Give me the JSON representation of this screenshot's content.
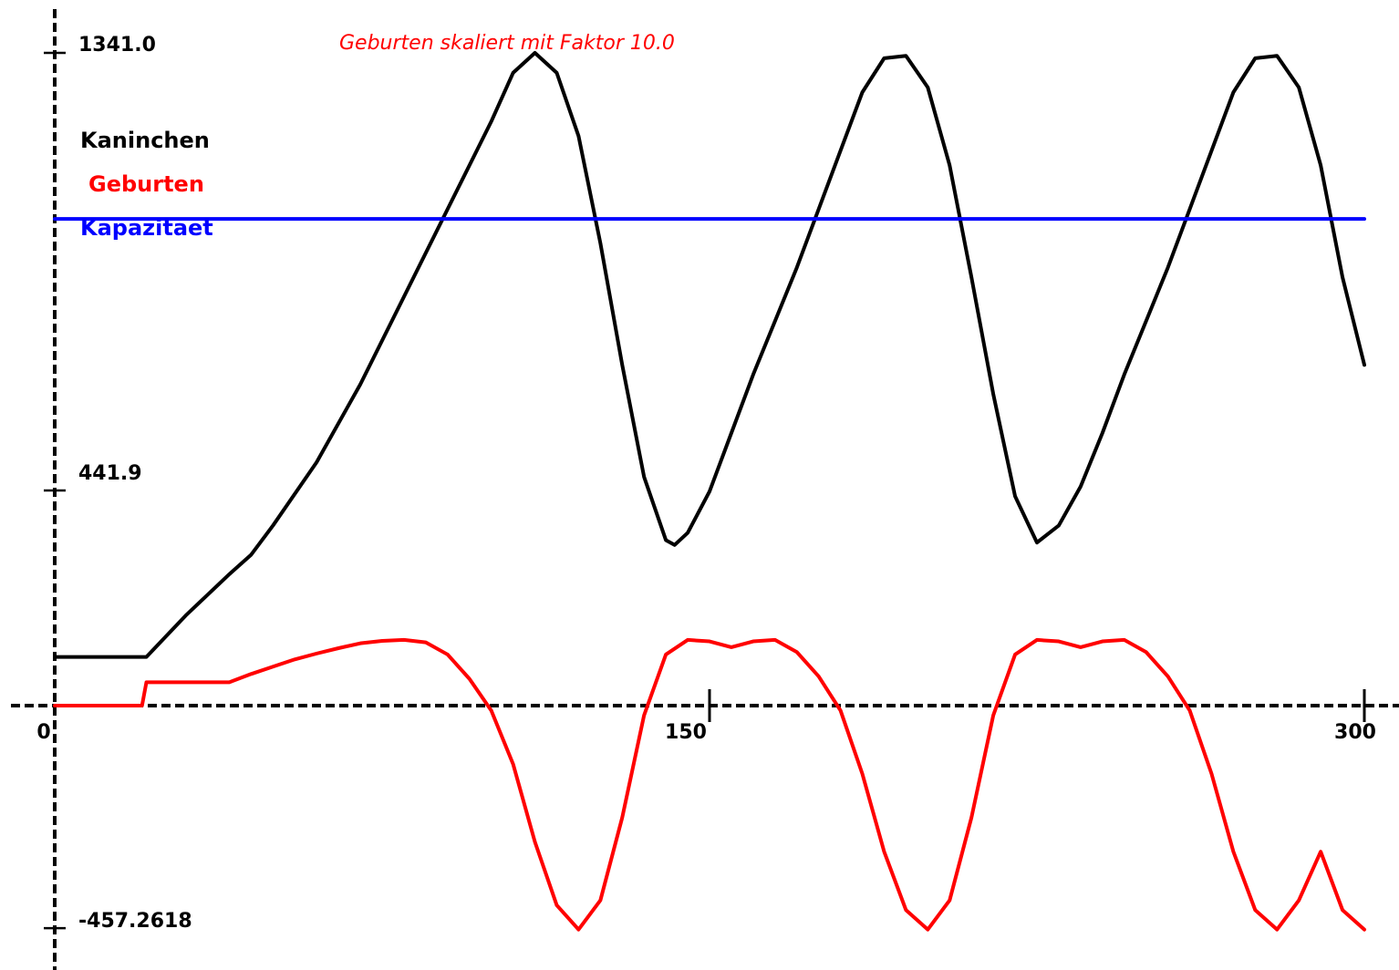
{
  "chart_data": {
    "type": "line",
    "annotation": "Geburten skaliert mit Faktor 10.0",
    "x_ticks": [
      "0",
      "150",
      "300"
    ],
    "y_ticks": [
      "1341.0",
      "441.9",
      "-457.2618"
    ],
    "xlim": [
      0,
      300
    ],
    "ylim": [
      -457.2618,
      1341.0
    ],
    "grid": false,
    "legend_position": "top-left",
    "series": [
      {
        "name": "Kaninchen",
        "color": "#000000",
        "x": [
          0,
          10,
          20,
          21,
          30,
          40,
          45,
          50,
          60,
          70,
          80,
          90,
          95,
          100,
          105,
          110,
          115,
          120,
          125,
          130,
          135,
          140,
          142,
          145,
          150,
          155,
          160,
          165,
          170,
          175,
          180,
          185,
          190,
          195,
          200,
          205,
          210,
          215,
          220,
          225,
          230,
          235,
          240,
          245,
          250,
          255,
          260,
          265,
          270,
          275,
          280,
          285,
          290,
          295,
          300
        ],
        "y": [
          100,
          100,
          100,
          100,
          185,
          270,
          310,
          370,
          500,
          660,
          840,
          1020,
          1110,
          1200,
          1300,
          1341,
          1300,
          1170,
          950,
          700,
          470,
          340,
          330,
          355,
          440,
          560,
          680,
          790,
          900,
          1020,
          1140,
          1260,
          1330,
          1335,
          1270,
          1110,
          880,
          640,
          430,
          335,
          370,
          450,
          560,
          680,
          790,
          900,
          1020,
          1140,
          1260,
          1330,
          1335,
          1270,
          1110,
          880,
          700
        ]
      },
      {
        "name": "Geburten",
        "color": "#ff0000",
        "x": [
          0,
          10,
          20,
          21,
          25,
          30,
          35,
          40,
          45,
          50,
          55,
          60,
          65,
          70,
          75,
          80,
          85,
          90,
          95,
          100,
          105,
          110,
          115,
          120,
          125,
          130,
          135,
          140,
          145,
          150,
          155,
          160,
          165,
          170,
          175,
          180,
          185,
          190,
          195,
          200,
          205,
          210,
          215,
          220,
          225,
          230,
          235,
          240,
          245,
          250,
          255,
          260,
          265,
          270,
          275,
          280,
          285,
          290,
          295,
          300
        ],
        "y": [
          0,
          0,
          0,
          48,
          48,
          48,
          48,
          48,
          65,
          80,
          95,
          107,
          118,
          128,
          133,
          135,
          130,
          105,
          55,
          -10,
          -120,
          -280,
          -410,
          -460,
          -400,
          -230,
          -20,
          105,
          135,
          132,
          120,
          132,
          135,
          110,
          60,
          -10,
          -140,
          -300,
          -420,
          -460,
          -400,
          -230,
          -20,
          105,
          135,
          132,
          120,
          132,
          135,
          110,
          60,
          -10,
          -140,
          -300,
          -420,
          -460,
          -400,
          -300,
          -420,
          -460
        ]
      },
      {
        "name": "Kapazitaet",
        "color": "#0000ff",
        "x": [
          0,
          300
        ],
        "y": [
          1000,
          1000
        ]
      }
    ]
  }
}
